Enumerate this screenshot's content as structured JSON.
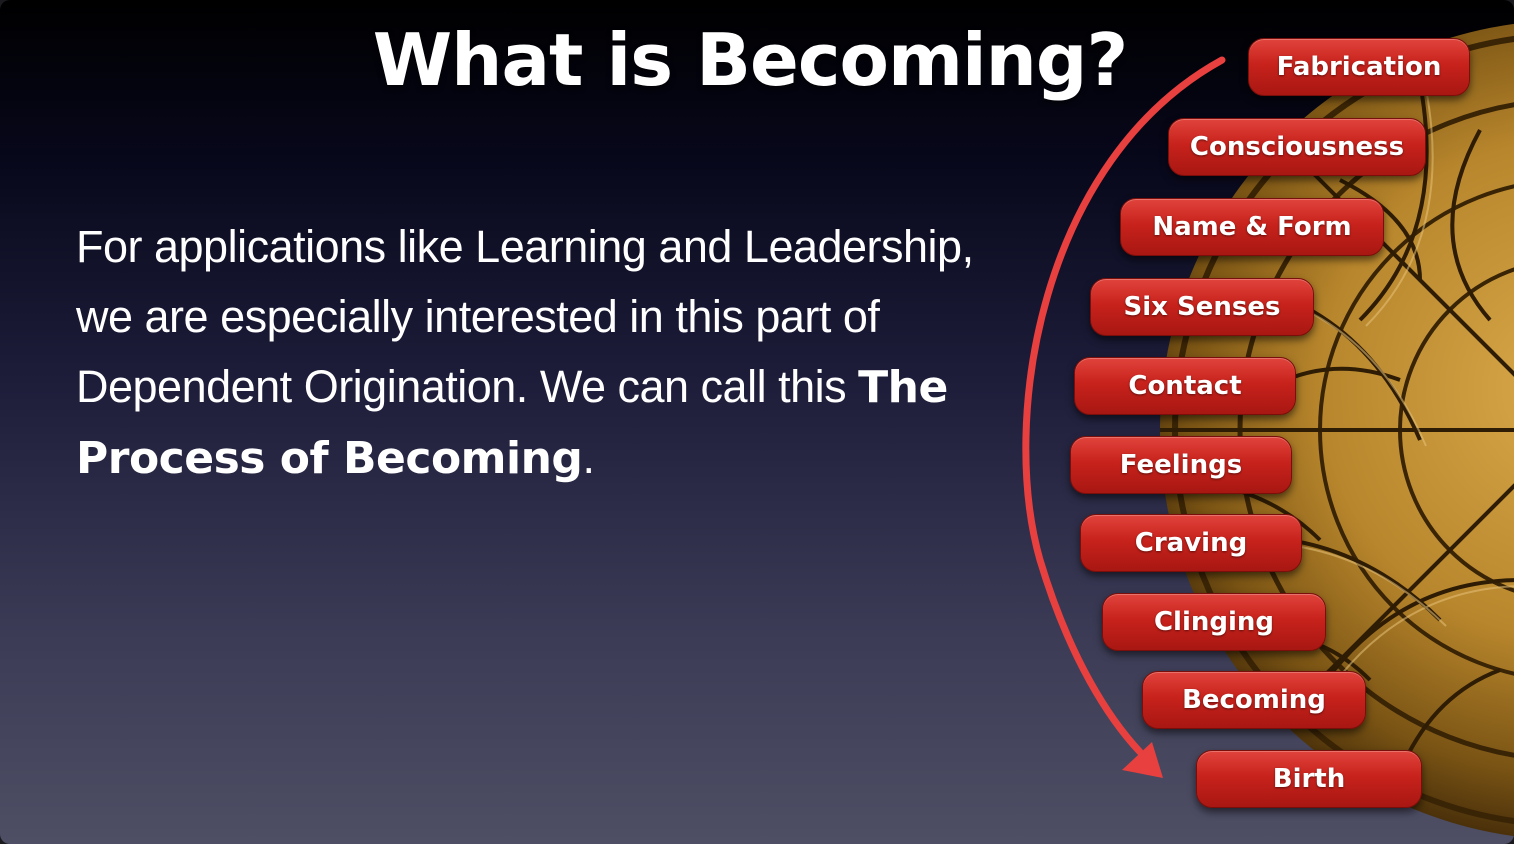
{
  "slide": {
    "title": "What is Becoming?",
    "body": {
      "prefix": "For applications like Learning and Leadership, we are especially interested in this part of Dependent Origination. We can call this ",
      "emphasis": "The Process of Becoming",
      "suffix": "."
    }
  },
  "chain": {
    "items": [
      {
        "label": "Fabrication"
      },
      {
        "label": "Consciousness"
      },
      {
        "label": "Name & Form"
      },
      {
        "label": "Six Senses"
      },
      {
        "label": "Contact"
      },
      {
        "label": "Feelings"
      },
      {
        "label": "Craving"
      },
      {
        "label": "Clinging"
      },
      {
        "label": "Becoming"
      },
      {
        "label": "Birth"
      }
    ]
  },
  "colors": {
    "accent_red": "#c8221c",
    "arrow_red": "#e8403e",
    "wheel_gold": "#b8862c"
  }
}
